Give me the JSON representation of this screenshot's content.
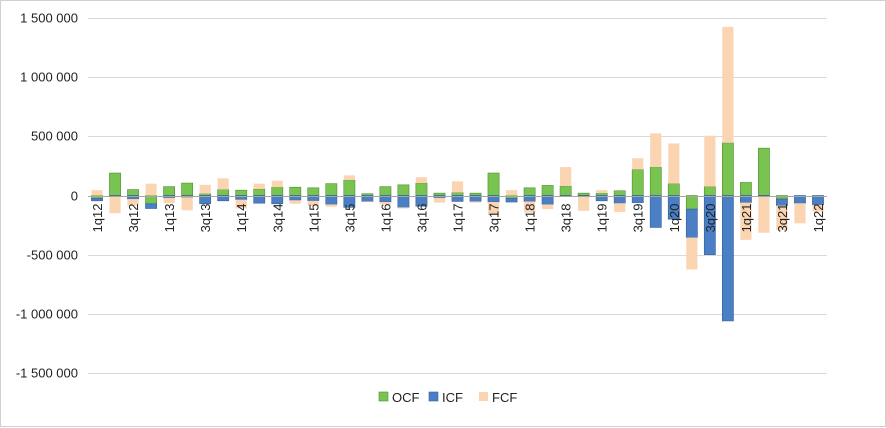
{
  "chart_data": {
    "type": "bar",
    "stacked": true,
    "categories": [
      "1q12",
      "2q12",
      "3q12",
      "4q12",
      "1q13",
      "2q13",
      "3q13",
      "4q13",
      "1q14",
      "2q14",
      "3q14",
      "4q14",
      "1q15",
      "2q15",
      "3q15",
      "4q15",
      "1q16",
      "2q16",
      "3q16",
      "4q16",
      "1q17",
      "2q17",
      "3q17",
      "4q17",
      "1q18",
      "2q18",
      "3q18",
      "4q18",
      "1q19",
      "2q19",
      "3q19",
      "4q19",
      "1q20",
      "2q20",
      "3q20",
      "4q20",
      "1q21",
      "2q21",
      "3q21",
      "4q21",
      "1q22"
    ],
    "tick_labels": [
      "1q12",
      "",
      "3q12",
      "",
      "1q13",
      "",
      "3q13",
      "",
      "1q14",
      "",
      "3q14",
      "",
      "1q15",
      "",
      "3q15",
      "",
      "1q16",
      "",
      "3q16",
      "",
      "1q17",
      "",
      "3q17",
      "",
      "1q18",
      "",
      "3q18",
      "",
      "1q19",
      "",
      "3q19",
      "",
      "1q20",
      "",
      "3q20",
      "",
      "1q21",
      "",
      "3q21",
      "",
      "1q22"
    ],
    "series": [
      {
        "name": "OCF",
        "color": "#79c451",
        "values": [
          -25000,
          190000,
          50000,
          -70000,
          75000,
          105000,
          15000,
          50000,
          45000,
          55000,
          70000,
          70000,
          65000,
          100000,
          130000,
          15000,
          75000,
          90000,
          105000,
          20000,
          25000,
          20000,
          190000,
          -25000,
          65000,
          85000,
          80000,
          20000,
          20000,
          40000,
          220000,
          240000,
          100000,
          -115000,
          75000,
          445000,
          110000,
          400000,
          -30000,
          0,
          0
        ]
      },
      {
        "name": "ICF",
        "color": "#4a7fc5",
        "values": [
          -20000,
          -10000,
          -30000,
          -40000,
          -20000,
          -15000,
          -70000,
          -45000,
          -35000,
          -65000,
          -70000,
          -40000,
          -45000,
          -75000,
          -100000,
          -50000,
          -55000,
          -100000,
          -90000,
          -20000,
          -50000,
          -50000,
          -55000,
          -30000,
          -50000,
          -75000,
          -10000,
          -5000,
          -45000,
          -65000,
          -60000,
          -270000,
          -200000,
          -240000,
          -500000,
          -1060000,
          -60000,
          -5000,
          -55000,
          -65000,
          -80000
        ]
      },
      {
        "name": "FCF",
        "color": "#fbd4b2",
        "values": [
          45000,
          -140000,
          -55000,
          100000,
          -45000,
          -110000,
          75000,
          95000,
          -75000,
          45000,
          55000,
          -30000,
          -45000,
          -20000,
          40000,
          -5000,
          -20000,
          -10000,
          50000,
          -40000,
          95000,
          -10000,
          -110000,
          45000,
          -95000,
          -40000,
          160000,
          -125000,
          25000,
          -75000,
          95000,
          285000,
          340000,
          -270000,
          430000,
          980000,
          -315000,
          -310000,
          -205000,
          -170000,
          -55000
        ]
      }
    ],
    "ylim": [
      -1500000,
      1500000
    ],
    "yticks": [
      -1500000,
      -1000000,
      -500000,
      0,
      500000,
      1000000,
      1500000
    ],
    "ytick_labels": [
      "-1 500 000",
      "-1 000 000",
      "-500 000",
      "0",
      "500 000",
      "1 000 000",
      "1 500 000"
    ],
    "grid": true,
    "legend": "bottom-center",
    "title": "",
    "xlabel": "",
    "ylabel": ""
  }
}
